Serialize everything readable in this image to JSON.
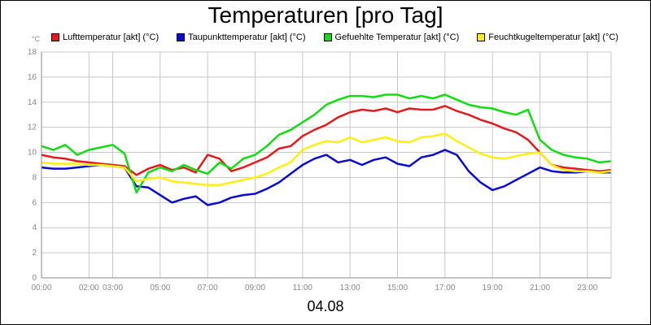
{
  "chart_data": {
    "type": "line",
    "title": "Temperaturen [pro Tag]",
    "date_label": "04.08",
    "y_unit": "°C",
    "ylim": [
      0,
      18
    ],
    "y_ticks": [
      "0",
      "2",
      "4",
      "6",
      "8",
      "10",
      "12",
      "14",
      "16",
      "18"
    ],
    "xlim": [
      0,
      24
    ],
    "x_ticks": [
      {
        "pos": 0,
        "label": "00:00"
      },
      {
        "pos": 2,
        "label": "02:00"
      },
      {
        "pos": 3,
        "label": "03:00"
      },
      {
        "pos": 5,
        "label": "05:00"
      },
      {
        "pos": 7,
        "label": "07:00"
      },
      {
        "pos": 9,
        "label": "09:00"
      },
      {
        "pos": 11,
        "label": "11:00"
      },
      {
        "pos": 13,
        "label": "13:00"
      },
      {
        "pos": 15,
        "label": "15:00"
      },
      {
        "pos": 17,
        "label": "17:00"
      },
      {
        "pos": 19,
        "label": "19:00"
      },
      {
        "pos": 21,
        "label": "21:00"
      },
      {
        "pos": 23,
        "label": "23:00"
      }
    ],
    "grid": true,
    "legend_position": "top",
    "x_hours": [
      0,
      0.5,
      1,
      1.5,
      2,
      2.5,
      3,
      3.5,
      4,
      4.5,
      5,
      5.5,
      6,
      6.5,
      7,
      7.5,
      8,
      8.5,
      9,
      9.5,
      10,
      10.5,
      11,
      11.5,
      12,
      12.5,
      13,
      13.5,
      14,
      14.5,
      15,
      15.5,
      16,
      16.5,
      17,
      17.5,
      18,
      18.5,
      19,
      19.5,
      20,
      20.5,
      21,
      21.5,
      22,
      22.5,
      23,
      23.5,
      24
    ],
    "series": [
      {
        "name": "Lufttemperatur [akt] (°C)",
        "color": "#e41a1c",
        "values": [
          9.8,
          9.6,
          9.5,
          9.3,
          9.2,
          9.1,
          9.0,
          8.9,
          8.2,
          8.7,
          9.0,
          8.6,
          8.8,
          8.4,
          9.8,
          9.5,
          8.5,
          8.8,
          9.2,
          9.6,
          10.3,
          10.5,
          11.3,
          11.8,
          12.2,
          12.8,
          13.2,
          13.4,
          13.3,
          13.5,
          13.2,
          13.5,
          13.4,
          13.4,
          13.7,
          13.3,
          13.0,
          12.6,
          12.3,
          11.9,
          11.6,
          11.0,
          10.0,
          9.0,
          8.8,
          8.7,
          8.6,
          8.5,
          8.6
        ]
      },
      {
        "name": "Taupunkttemperatur [akt] (°C)",
        "color": "#0a0ad0",
        "values": [
          8.8,
          8.7,
          8.7,
          8.8,
          8.9,
          9.0,
          8.9,
          8.8,
          7.3,
          7.2,
          6.6,
          6.0,
          6.3,
          6.5,
          5.8,
          6.0,
          6.4,
          6.6,
          6.7,
          7.1,
          7.6,
          8.3,
          9.0,
          9.5,
          9.8,
          9.2,
          9.4,
          9.0,
          9.4,
          9.6,
          9.1,
          8.9,
          9.6,
          9.8,
          10.2,
          9.8,
          8.5,
          7.6,
          7.0,
          7.3,
          7.8,
          8.3,
          8.8,
          8.5,
          8.4,
          8.4,
          8.5,
          8.4,
          8.4
        ]
      },
      {
        "name": "Gefuehlte Temperatur [akt] (°C)",
        "color": "#11dd11",
        "values": [
          10.5,
          10.2,
          10.6,
          9.8,
          10.2,
          10.4,
          10.6,
          9.9,
          6.8,
          8.4,
          8.8,
          8.5,
          9.0,
          8.6,
          8.3,
          9.2,
          8.7,
          9.5,
          9.8,
          10.5,
          11.4,
          11.8,
          12.4,
          13.0,
          13.8,
          14.2,
          14.5,
          14.5,
          14.4,
          14.6,
          14.6,
          14.3,
          14.5,
          14.3,
          14.6,
          14.2,
          13.8,
          13.6,
          13.5,
          13.2,
          13.0,
          13.4,
          11.0,
          10.2,
          9.8,
          9.6,
          9.5,
          9.2,
          9.3
        ]
      },
      {
        "name": "Feuchtkugeltemperatur [akt] (°C)",
        "color": "#ffee11",
        "values": [
          9.2,
          9.1,
          9.1,
          9.1,
          9.0,
          9.0,
          8.9,
          8.8,
          7.7,
          7.9,
          8.0,
          7.7,
          7.6,
          7.5,
          7.4,
          7.4,
          7.6,
          7.8,
          8.0,
          8.3,
          8.8,
          9.2,
          10.2,
          10.6,
          10.9,
          10.8,
          11.2,
          10.8,
          11.0,
          11.2,
          10.9,
          10.8,
          11.2,
          11.3,
          11.5,
          10.9,
          10.4,
          9.9,
          9.6,
          9.5,
          9.7,
          9.9,
          10.0,
          9.0,
          8.6,
          8.5,
          8.5,
          8.4,
          8.5
        ]
      }
    ]
  }
}
